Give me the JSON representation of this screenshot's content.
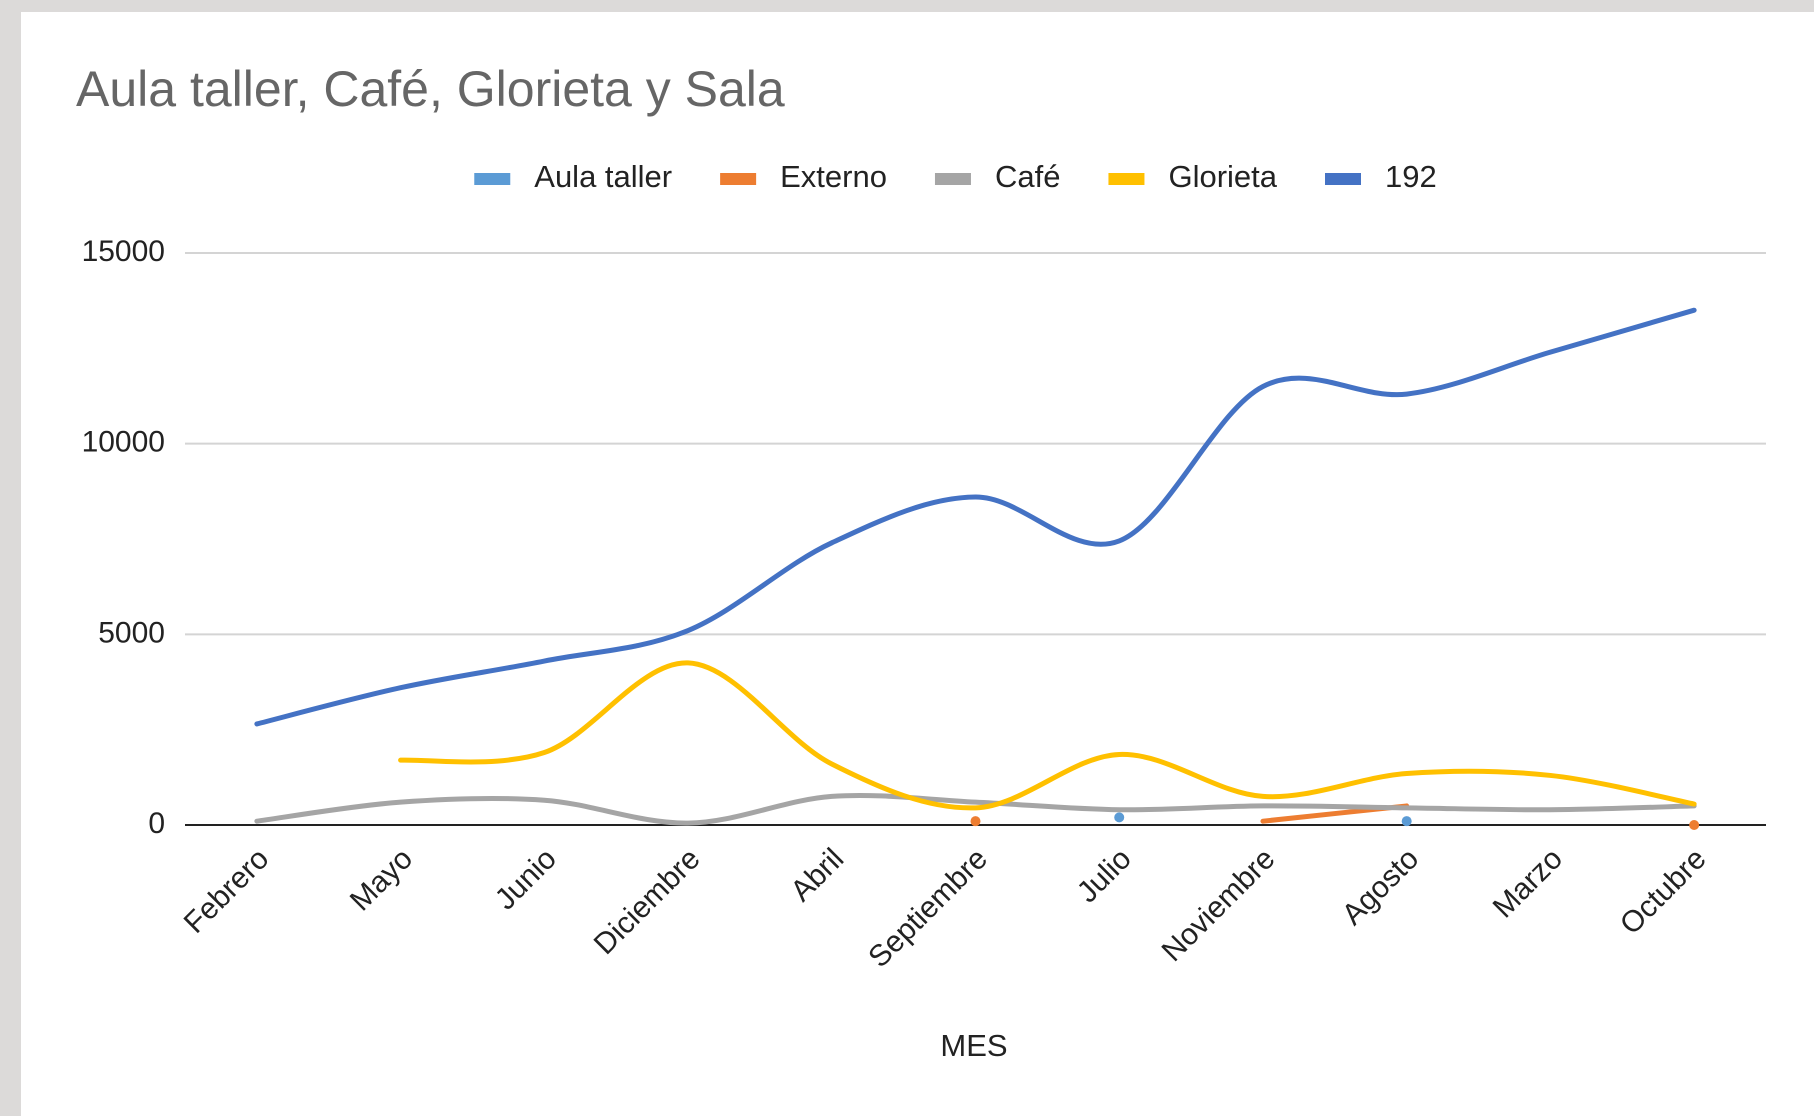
{
  "chart_data": {
    "type": "line",
    "title": "Aula taller, Café, Glorieta y Sala",
    "x_label": "MES",
    "categories": [
      "Febrero",
      "Mayo",
      "Junio",
      "Diciembre",
      "Abril",
      "Septiembre",
      "Julio",
      "Noviembre",
      "Agosto",
      "Marzo",
      "Octubre"
    ],
    "series": [
      {
        "name": "Aula taller",
        "color": "#5b9bd5",
        "values": [
          null,
          null,
          null,
          null,
          null,
          null,
          200,
          null,
          100,
          null,
          null
        ]
      },
      {
        "name": "Externo",
        "color": "#ed7d31",
        "values": [
          null,
          null,
          null,
          null,
          null,
          100,
          null,
          100,
          500,
          null,
          0
        ]
      },
      {
        "name": "Café",
        "color": "#a5a5a5",
        "values": [
          100,
          600,
          650,
          50,
          750,
          600,
          400,
          500,
          450,
          400,
          500
        ]
      },
      {
        "name": "Glorieta",
        "color": "#ffc000",
        "values": [
          null,
          1700,
          1900,
          4250,
          1600,
          450,
          1850,
          750,
          1350,
          1300,
          550
        ]
      },
      {
        "name": "192",
        "color": "#4472c4",
        "values": [
          2650,
          3600,
          4300,
          5100,
          7400,
          8600,
          7450,
          11500,
          11300,
          12400,
          13500
        ]
      }
    ],
    "ylim": [
      0,
      15000
    ],
    "yticks": [
      0,
      5000,
      10000,
      15000
    ],
    "grid": true,
    "smooth": true,
    "legend": "top"
  }
}
